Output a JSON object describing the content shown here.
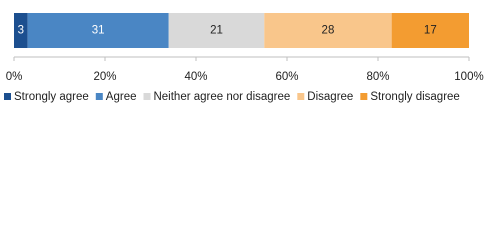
{
  "chart_data": {
    "type": "stacked-bar",
    "series": [
      {
        "name": "Strongly agree",
        "color": "#1c4f8f",
        "values": [
          3
        ]
      },
      {
        "name": "Agree",
        "color": "#4a86c4",
        "values": [
          31
        ]
      },
      {
        "name": "Neither agree nor disagree",
        "color": "#d9d9d9",
        "values": [
          21
        ]
      },
      {
        "name": "Disagree",
        "color": "#f9c68b",
        "values": [
          28
        ]
      },
      {
        "name": "Strongly disagree",
        "color": "#f39c31",
        "values": [
          17
        ]
      }
    ],
    "xlim": [
      0,
      100
    ],
    "xticks": [
      {
        "value": 0,
        "label": "0%"
      },
      {
        "value": 20,
        "label": "20%"
      },
      {
        "value": 40,
        "label": "40%"
      },
      {
        "value": 60,
        "label": "60%"
      },
      {
        "value": 80,
        "label": "80%"
      },
      {
        "value": 100,
        "label": "100%"
      }
    ],
    "legend": "bottom"
  }
}
